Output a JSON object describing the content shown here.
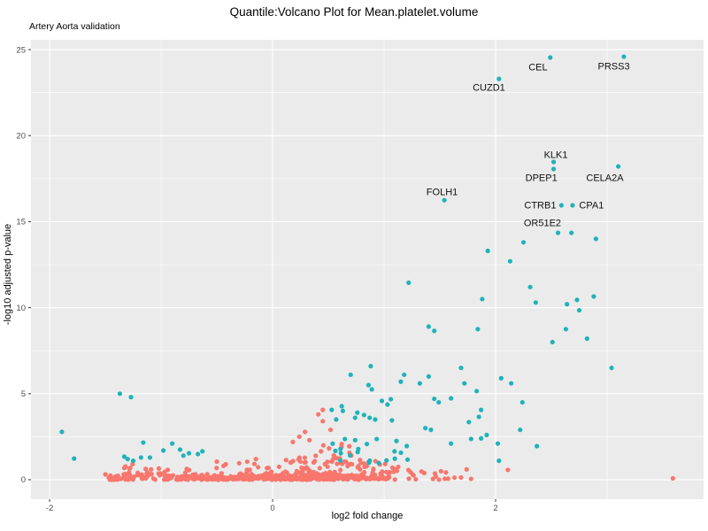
{
  "chart_data": {
    "type": "scatter",
    "title": "Quantile:Volcano Plot for Mean.platelet.volume",
    "subtitle": "Artery Aorta validation",
    "xlabel": "log2 fold change",
    "ylabel": "-log10 adjusted p-value",
    "x_domain": [
      -2.167,
      3.865
    ],
    "y_domain": [
      -1.13,
      25.57
    ],
    "x_major_ticks": [
      -2,
      0,
      2
    ],
    "x_minor_ticks": [
      -1,
      1,
      3
    ],
    "y_major_ticks": [
      0,
      5,
      10,
      15,
      20,
      25
    ],
    "y_minor_ticks": [
      2.5,
      7.5,
      12.5,
      17.5,
      22.5
    ],
    "colors": {
      "significant": "#20b2ba",
      "not_significant": "#F8766D",
      "panel_background": "#EBEBEB",
      "grid": "#FFFFFF",
      "tick_label": "#4D4D4D",
      "tick_mark": "#333333",
      "gene_label": "#111111"
    },
    "point_radius": 2.6,
    "labeled_points": [
      {
        "gene": "CEL",
        "x": 2.49,
        "y": 24.54,
        "lx": 2.38,
        "ly": 23.97
      },
      {
        "gene": "PRSS3",
        "x": 3.15,
        "y": 24.59,
        "lx": 3.06,
        "ly": 24.02
      },
      {
        "gene": "CUZD1",
        "x": 2.03,
        "y": 23.3,
        "lx": 1.94,
        "ly": 22.79
      },
      {
        "gene": "KLK1",
        "x": 2.52,
        "y": 18.47,
        "lx": 2.54,
        "ly": 18.88
      },
      {
        "gene": "DPEP1",
        "x": 2.52,
        "y": 18.06,
        "lx": 2.41,
        "ly": 17.54
      },
      {
        "gene": "CELA2A",
        "x": 3.1,
        "y": 18.21,
        "lx": 2.98,
        "ly": 17.54
      },
      {
        "gene": "FOLH1",
        "x": 1.54,
        "y": 16.25,
        "lx": 1.52,
        "ly": 16.72
      },
      {
        "gene": "CTRB1",
        "x": 2.59,
        "y": 15.95,
        "lx": 2.4,
        "ly": 15.95
      },
      {
        "gene": "CPA1",
        "x": 2.69,
        "y": 15.95,
        "lx": 2.86,
        "ly": 15.95
      },
      {
        "gene": "OR51E2",
        "x": 2.56,
        "y": 14.35,
        "lx": 2.42,
        "ly": 14.92
      }
    ],
    "points_sig": [
      [
        2.68,
        14.35
      ],
      [
        2.9,
        14.0
      ],
      [
        2.25,
        13.8
      ],
      [
        1.93,
        13.3
      ],
      [
        2.13,
        12.7
      ],
      [
        1.22,
        11.45
      ],
      [
        2.31,
        11.2
      ],
      [
        1.88,
        10.5
      ],
      [
        2.36,
        10.3
      ],
      [
        2.64,
        10.2
      ],
      [
        2.73,
        10.45
      ],
      [
        2.88,
        10.65
      ],
      [
        2.75,
        9.85
      ],
      [
        1.4,
        8.9
      ],
      [
        1.45,
        8.65
      ],
      [
        1.84,
        8.75
      ],
      [
        2.63,
        8.75
      ],
      [
        2.51,
        8.0
      ],
      [
        2.82,
        8.2
      ],
      [
        3.04,
        6.5
      ],
      [
        2.05,
        5.9
      ],
      [
        2.14,
        5.6
      ],
      [
        0.88,
        6.6
      ],
      [
        0.7,
        6.1
      ],
      [
        1.18,
        6.1
      ],
      [
        1.69,
        6.5
      ],
      [
        1.4,
        6.0
      ],
      [
        1.15,
        5.7
      ],
      [
        1.32,
        5.6
      ],
      [
        0.86,
        5.5
      ],
      [
        0.89,
        5.25
      ],
      [
        1.72,
        5.6
      ],
      [
        1.83,
        5.15
      ],
      [
        1.45,
        4.7
      ],
      [
        1.49,
        4.5
      ],
      [
        1.6,
        4.73
      ],
      [
        1.06,
        4.68
      ],
      [
        0.98,
        4.58
      ],
      [
        1.03,
        4.37
      ],
      [
        0.62,
        4.27
      ],
      [
        0.63,
        4.0
      ],
      [
        0.53,
        4.06
      ],
      [
        0.76,
        3.9
      ],
      [
        0.82,
        3.76
      ],
      [
        0.74,
        3.6
      ],
      [
        0.87,
        3.6
      ],
      [
        0.92,
        3.5
      ],
      [
        0.57,
        3.5
      ],
      [
        1.07,
        3.45
      ],
      [
        1.87,
        4.06
      ],
      [
        1.85,
        3.65
      ],
      [
        1.76,
        3.35
      ],
      [
        2.24,
        4.5
      ],
      [
        -1.37,
        5.0
      ],
      [
        -1.27,
        4.8
      ],
      [
        -1.89,
        2.78
      ],
      [
        -1.78,
        1.23
      ],
      [
        -1.16,
        2.16
      ],
      [
        -1.33,
        1.34
      ],
      [
        -1.3,
        1.2
      ],
      [
        -1.25,
        1.1
      ],
      [
        -1.18,
        1.29
      ],
      [
        -1.1,
        1.29
      ],
      [
        -0.98,
        1.7
      ],
      [
        -0.9,
        2.1
      ],
      [
        -0.83,
        1.75
      ],
      [
        -0.8,
        1.4
      ],
      [
        -0.75,
        1.54
      ],
      [
        -0.67,
        1.49
      ],
      [
        -0.63,
        1.65
      ],
      [
        1.37,
        3.0
      ],
      [
        1.42,
        2.9
      ],
      [
        1.6,
        2.1
      ],
      [
        1.78,
        2.37
      ],
      [
        1.87,
        2.4
      ],
      [
        2.22,
        2.9
      ],
      [
        1.92,
        2.6
      ],
      [
        2.02,
        2.1
      ],
      [
        2.37,
        1.95
      ],
      [
        2.03,
        1.1
      ]
    ],
    "points_ns": [
      [
        -1.5,
        0.31
      ],
      [
        -1.43,
        0.05
      ],
      [
        -1.32,
        0.77
      ],
      [
        -1.28,
        0.26
      ],
      [
        -1.21,
        0.4
      ],
      [
        -1.09,
        0.6
      ],
      [
        -1.02,
        0.65
      ],
      [
        -0.94,
        0.57
      ],
      [
        -0.5,
        1.05
      ],
      [
        -0.42,
        0.9
      ],
      [
        -0.15,
        1.2
      ],
      [
        -0.13,
        0.73
      ],
      [
        0.45,
        4.06
      ],
      [
        0.41,
        3.8
      ],
      [
        0.45,
        3.4
      ],
      [
        0.29,
        2.78
      ],
      [
        0.33,
        2.3
      ],
      [
        0.24,
        2.5
      ],
      [
        0.52,
        2.9
      ],
      [
        2.11,
        0.57
      ],
      [
        1.74,
        0.6
      ],
      [
        1.78,
        0.05
      ],
      [
        3.59,
        0.08
      ]
    ],
    "clusters": [
      {
        "name": "carpet-core",
        "class": "ns",
        "n": 300,
        "x": [
          -0.95,
          1.05
        ],
        "y": [
          0,
          0.22
        ],
        "seed": 11,
        "bias": 1
      },
      {
        "name": "carpet-extra",
        "class": "ns",
        "n": 90,
        "x": [
          0.0,
          1.02
        ],
        "y": [
          0,
          0.28
        ],
        "seed": 12,
        "bias": 1
      },
      {
        "name": "left-cluster",
        "class": "ns",
        "n": 45,
        "x": [
          -1.48,
          -0.93
        ],
        "y": [
          0,
          0.38
        ],
        "seed": 13,
        "bias": 1.8
      },
      {
        "name": "band-above",
        "class": "ns",
        "n": 120,
        "x": [
          -0.3,
          1.1
        ],
        "y": [
          0.22,
          1.15
        ],
        "seed": 14,
        "bias": 2.2
      },
      {
        "name": "left-sparse",
        "class": "ns",
        "n": 25,
        "x": [
          -1.35,
          -0.4
        ],
        "y": [
          0.25,
          0.95
        ],
        "seed": 15,
        "bias": 1.5
      },
      {
        "name": "mid-upper",
        "class": "ns",
        "n": 26,
        "x": [
          0.05,
          0.75
        ],
        "y": [
          1.0,
          2.35
        ],
        "seed": 16,
        "bias": 1.8
      },
      {
        "name": "right-sparse",
        "class": "ns",
        "n": 22,
        "x": [
          1.05,
          1.78
        ],
        "y": [
          0,
          0.8
        ],
        "seed": 17,
        "bias": 1.6
      },
      {
        "name": "teal-low",
        "class": "sig",
        "n": 22,
        "x": [
          0.45,
          1.25
        ],
        "y": [
          0.9,
          2.6
        ],
        "seed": 18,
        "bias": 1.3
      }
    ]
  }
}
